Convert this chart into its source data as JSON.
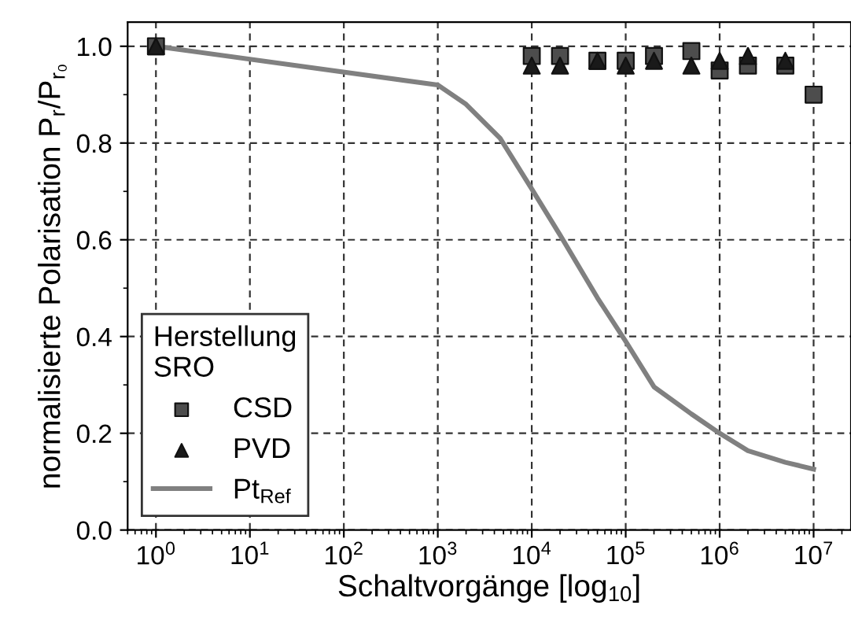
{
  "chart_data": {
    "type": "scatter",
    "xlabel": "Schaltvorgänge [log$_{10}$]",
    "ylabel": "normalisierte Polarisation P$_{r}$/P$_{r₀}$",
    "legend_title": "Herstellung\nSRO",
    "log": "x",
    "grid": true,
    "legend": "bottom left",
    "xlim": [
      0.5,
      25000000
    ],
    "ylim": [
      0,
      1.05
    ],
    "xticks": [
      {
        "value": 1,
        "label": "10$^{0}$"
      },
      {
        "value": 10,
        "label": "10$^{1}$"
      },
      {
        "value": 100,
        "label": "10$^{2}$"
      },
      {
        "value": 1000,
        "label": "10$^{3}$"
      },
      {
        "value": 10000,
        "label": "10$^{4}$"
      },
      {
        "value": 100000,
        "label": "10$^{5}$"
      },
      {
        "value": 1000000,
        "label": "10$^{6}$"
      },
      {
        "value": 10000000,
        "label": "10$^{7}$"
      }
    ],
    "yticks": [
      {
        "value": 0,
        "label": "0.0"
      },
      {
        "value": 0.2,
        "label": "0.2"
      },
      {
        "value": 0.4,
        "label": "0.4"
      },
      {
        "value": 0.6,
        "label": "0.6"
      },
      {
        "value": 0.8,
        "label": "0.8"
      },
      {
        "value": 1,
        "label": "1.0"
      }
    ],
    "series": [
      {
        "name": "CSD",
        "marker": "square",
        "color": "#4d4d4d",
        "x": [
          1,
          10000,
          20000,
          50000,
          100000,
          200000,
          500000,
          1000000,
          2000000,
          5000000,
          10000000
        ],
        "values": [
          1.0,
          0.98,
          0.98,
          0.97,
          0.97,
          0.98,
          0.99,
          0.95,
          0.96,
          0.96,
          0.9
        ]
      },
      {
        "name": "PVD",
        "marker": "triangle",
        "color": "#1a1a1a",
        "x": [
          1,
          10000,
          20000,
          50000,
          100000,
          200000,
          500000,
          1000000,
          2000000,
          5000000
        ],
        "values": [
          1.0,
          0.96,
          0.96,
          0.97,
          0.96,
          0.97,
          0.96,
          0.97,
          0.98,
          0.97
        ]
      },
      {
        "name": "Pt$_{Ref}$",
        "type": "line",
        "marker": "none",
        "line_style": "solid",
        "color": "#808080",
        "x": [
          1,
          1000,
          2000,
          4600,
          10000,
          20000,
          50000,
          100000,
          200000,
          500000,
          1000000,
          2000000,
          5000000,
          10000000
        ],
        "values": [
          1.0,
          0.92,
          0.88,
          0.81,
          0.705,
          0.61,
          0.48,
          0.39,
          0.296,
          0.24,
          0.2,
          0.164,
          0.14,
          0.126
        ]
      }
    ]
  }
}
